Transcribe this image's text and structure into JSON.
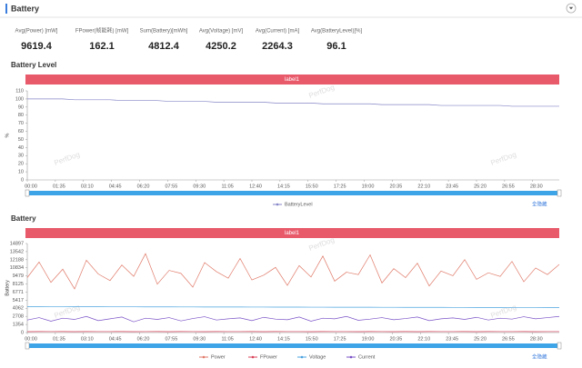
{
  "header": {
    "title": "Battery"
  },
  "stats": [
    {
      "label": "Avg(Power) [mW]",
      "value": 9619.4
    },
    {
      "label": "FPower(帧能耗) [mW]",
      "value": 162.1
    },
    {
      "label": "Sum(Battery)[mWh]",
      "value": 4812.4
    },
    {
      "label": "Avg(Voltage) [mV]",
      "value": 4250.2
    },
    {
      "label": "Avg(Current) [mA]",
      "value": 2264.3
    },
    {
      "label": "Avg(BatteryLevel)[%]",
      "value": 96.1
    }
  ],
  "chart_data": [
    {
      "type": "line",
      "title": "Battery Level",
      "band_label": "label1",
      "ylabel": "%",
      "watermark": "PerfDog",
      "legend_action": "全隐藏",
      "x": [
        0,
        40,
        80,
        120,
        160,
        200,
        240,
        280,
        320,
        360,
        400,
        440,
        480,
        520,
        560,
        600,
        640,
        680,
        720,
        760,
        800,
        840,
        880,
        920,
        960,
        1000,
        1040,
        1080,
        1120,
        1160,
        1200,
        1240,
        1280,
        1320,
        1360,
        1400,
        1440,
        1480,
        1520,
        1560,
        1600,
        1640,
        1680,
        1720,
        1760,
        1800
      ],
      "xlim": [
        0,
        1800
      ],
      "xticks": [
        {
          "value": 0,
          "label": "00:00"
        },
        {
          "value": 95,
          "label": "01:35"
        },
        {
          "value": 190,
          "label": "03:10"
        },
        {
          "value": 285,
          "label": "04:45"
        },
        {
          "value": 380,
          "label": "06:20"
        },
        {
          "value": 475,
          "label": "07:55"
        },
        {
          "value": 570,
          "label": "09:30"
        },
        {
          "value": 665,
          "label": "11:05"
        },
        {
          "value": 760,
          "label": "12:40"
        },
        {
          "value": 855,
          "label": "14:15"
        },
        {
          "value": 950,
          "label": "15:50"
        },
        {
          "value": 1045,
          "label": "17:25"
        },
        {
          "value": 1140,
          "label": "19:00"
        },
        {
          "value": 1235,
          "label": "20:35"
        },
        {
          "value": 1330,
          "label": "22:10"
        },
        {
          "value": 1425,
          "label": "23:45"
        },
        {
          "value": 1520,
          "label": "25:20"
        },
        {
          "value": 1615,
          "label": "26:55"
        },
        {
          "value": 1710,
          "label": "28:30"
        }
      ],
      "ylim": [
        0,
        110
      ],
      "yticks": [
        0,
        10,
        20,
        30,
        40,
        50,
        60,
        70,
        80,
        90,
        100,
        110
      ],
      "series": [
        {
          "name": "BatteryLevel",
          "color": "#8585c8",
          "values": [
            100,
            100,
            100,
            100,
            99,
            99,
            99,
            99,
            98,
            98,
            98,
            98,
            97,
            97,
            97,
            97,
            96,
            96,
            96,
            96,
            96,
            95,
            95,
            95,
            95,
            94,
            94,
            94,
            94,
            94,
            93,
            93,
            93,
            93,
            93,
            92,
            92,
            92,
            92,
            92,
            92,
            91,
            91,
            91,
            91,
            91
          ]
        }
      ]
    },
    {
      "type": "line",
      "title": "Battery",
      "band_label": "label1",
      "ylabel": "Battery",
      "watermark": "PerfDog",
      "legend_action": "全隐藏",
      "x": [
        0,
        40,
        80,
        120,
        160,
        200,
        240,
        280,
        320,
        360,
        400,
        440,
        480,
        520,
        560,
        600,
        640,
        680,
        720,
        760,
        800,
        840,
        880,
        920,
        960,
        1000,
        1040,
        1080,
        1120,
        1160,
        1200,
        1240,
        1280,
        1320,
        1360,
        1400,
        1440,
        1480,
        1520,
        1560,
        1600,
        1640,
        1680,
        1720,
        1760,
        1800
      ],
      "xlim": [
        0,
        1800
      ],
      "xticks": [
        {
          "value": 0,
          "label": "00:00"
        },
        {
          "value": 95,
          "label": "01:35"
        },
        {
          "value": 190,
          "label": "03:10"
        },
        {
          "value": 285,
          "label": "04:45"
        },
        {
          "value": 380,
          "label": "06:20"
        },
        {
          "value": 475,
          "label": "07:55"
        },
        {
          "value": 570,
          "label": "09:30"
        },
        {
          "value": 665,
          "label": "11:05"
        },
        {
          "value": 760,
          "label": "12:40"
        },
        {
          "value": 855,
          "label": "14:15"
        },
        {
          "value": 950,
          "label": "15:50"
        },
        {
          "value": 1045,
          "label": "17:25"
        },
        {
          "value": 1140,
          "label": "19:00"
        },
        {
          "value": 1235,
          "label": "20:35"
        },
        {
          "value": 1330,
          "label": "22:10"
        },
        {
          "value": 1425,
          "label": "23:45"
        },
        {
          "value": 1520,
          "label": "25:20"
        },
        {
          "value": 1615,
          "label": "26:55"
        },
        {
          "value": 1710,
          "label": "28:30"
        }
      ],
      "ylim": [
        0,
        14897
      ],
      "yticks": [
        0,
        1354,
        2708,
        4062,
        5417,
        6771,
        8125,
        9479,
        10834,
        12188,
        13542,
        14897
      ],
      "series": [
        {
          "name": "Power",
          "color": "#e07b6a",
          "values": [
            9200,
            11800,
            8400,
            10600,
            7300,
            12100,
            9800,
            8700,
            11300,
            9400,
            13200,
            8100,
            10400,
            9900,
            7600,
            11700,
            10200,
            9100,
            12400,
            8800,
            9600,
            10900,
            7900,
            11200,
            9300,
            12800,
            8600,
            10100,
            9700,
            13000,
            8300,
            10700,
            9200,
            11600,
            7800,
            10300,
            9500,
            12200,
            8900,
            10000,
            9400,
            11900,
            8500,
            10800,
            9700,
            11400
          ]
        },
        {
          "name": "FPower",
          "color": "#d9435a",
          "values": [
            150,
            170,
            160,
            165,
            155,
            175,
            158,
            162,
            168,
            152,
            160,
            171,
            149,
            166,
            163,
            157,
            174,
            159,
            161,
            167,
            153,
            169,
            158,
            164,
            156,
            172,
            160,
            163,
            150,
            168,
            162,
            157,
            173,
            155,
            166,
            161,
            159,
            170,
            154,
            165,
            162,
            158,
            171,
            156,
            164,
            160
          ]
        },
        {
          "name": "Voltage",
          "color": "#4aa3df",
          "values": [
            4330,
            4327,
            4323,
            4320,
            4317,
            4313,
            4310,
            4307,
            4303,
            4300,
            4297,
            4293,
            4290,
            4287,
            4283,
            4280,
            4277,
            4273,
            4270,
            4267,
            4263,
            4260,
            4257,
            4253,
            4250,
            4247,
            4243,
            4240,
            4237,
            4233,
            4230,
            4227,
            4223,
            4220,
            4217,
            4213,
            4210,
            4207,
            4203,
            4200,
            4197,
            4193,
            4190,
            4187,
            4183,
            4180
          ]
        },
        {
          "name": "Current",
          "color": "#7a52c7",
          "values": [
            2100,
            2500,
            1900,
            2400,
            2200,
            2700,
            2000,
            2300,
            2600,
            1800,
            2400,
            2200,
            2500,
            1950,
            2350,
            2650,
            2100,
            2300,
            2450,
            2000,
            2550,
            2250,
            2150,
            2600,
            1900,
            2400,
            2300,
            2700,
            2050,
            2250,
            2500,
            2150,
            2350,
            2600,
            2000,
            2300,
            2450,
            2200,
            2550,
            2100,
            2400,
            2250,
            2650,
            2300,
            2500,
            2700
          ]
        }
      ]
    }
  ]
}
